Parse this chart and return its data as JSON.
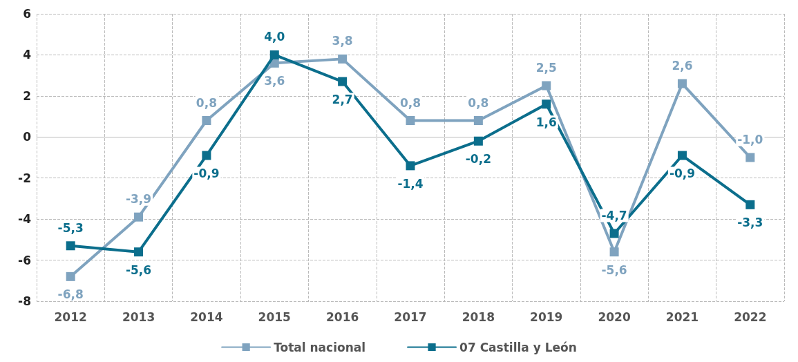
{
  "chart_data": {
    "type": "line",
    "categories": [
      "2012",
      "2013",
      "2014",
      "2015",
      "2016",
      "2017",
      "2018",
      "2019",
      "2020",
      "2021",
      "2022"
    ],
    "series": [
      {
        "name": "Total nacional",
        "color": "#7fa3bf",
        "values": [
          -6.8,
          -3.9,
          0.8,
          3.6,
          3.8,
          0.8,
          0.8,
          2.5,
          -5.6,
          2.6,
          -1.0
        ],
        "value_labels": [
          "-6,8",
          "-3,9",
          "0,8",
          "3,6",
          "3,8",
          "0,8",
          "0,8",
          "2,5",
          "-5,6",
          "2,6",
          "-1,0"
        ]
      },
      {
        "name": "07 Castilla y León",
        "color": "#0b6e8c",
        "values": [
          -5.3,
          -5.6,
          -0.9,
          4.0,
          2.7,
          -1.4,
          -0.2,
          1.6,
          -4.7,
          -0.9,
          -3.3
        ],
        "value_labels": [
          "-5,3",
          "-5,6",
          "-0,9",
          "4,0",
          "2,7",
          "-1,4",
          "-0,2",
          "1,6",
          "-4,7",
          "-0,9",
          "-3,3"
        ]
      }
    ],
    "ylim": [
      -8,
      6
    ],
    "yticks": [
      -8,
      -6,
      -4,
      -2,
      0,
      2,
      4,
      6
    ],
    "grid": true,
    "legend": "bottom",
    "marker": "square",
    "line_style": "solid"
  }
}
